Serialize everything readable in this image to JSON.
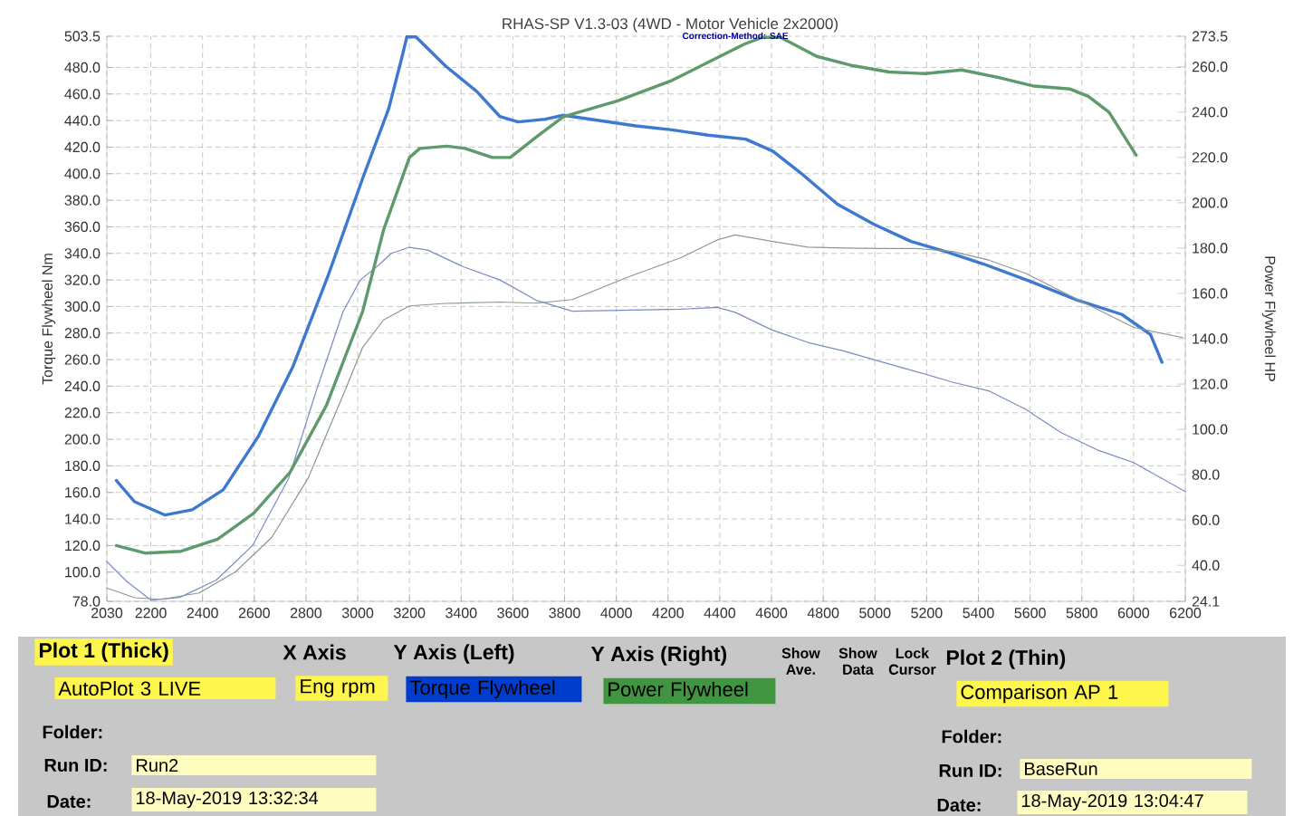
{
  "chart_data": {
    "type": "line",
    "title": "RHAS-SP V1.3-03 (4WD - Motor Vehicle 2x2000)",
    "subtitle": "Correction-Method: SAE",
    "ylabel": "Torque Flywheel Nm",
    "y2label": "Power Flywheel HP",
    "xlim": [
      2030,
      6200
    ],
    "xticks": [
      2030,
      2200,
      2400,
      2600,
      2800,
      3000,
      3200,
      3400,
      3600,
      3800,
      4000,
      4200,
      4400,
      4600,
      4800,
      5000,
      5200,
      5400,
      5600,
      5800,
      6000,
      6200
    ],
    "ylim": [
      78,
      503.5
    ],
    "yticks": [
      {
        "value": 78,
        "label": "78.0"
      },
      {
        "value": 100,
        "label": "100.0"
      },
      {
        "value": 120,
        "label": "120.0"
      },
      {
        "value": 140,
        "label": "140.0"
      },
      {
        "value": 160,
        "label": "160.0"
      },
      {
        "value": 180,
        "label": "180.0"
      },
      {
        "value": 200,
        "label": "200.0"
      },
      {
        "value": 220,
        "label": "220.0"
      },
      {
        "value": 240,
        "label": "240.0"
      },
      {
        "value": 260,
        "label": "260.0"
      },
      {
        "value": 280,
        "label": "280.0"
      },
      {
        "value": 300,
        "label": "300.0"
      },
      {
        "value": 320,
        "label": "320.0"
      },
      {
        "value": 340,
        "label": "340.0"
      },
      {
        "value": 360,
        "label": "360.0"
      },
      {
        "value": 380,
        "label": "380.0"
      },
      {
        "value": 400,
        "label": "400.0"
      },
      {
        "value": 420,
        "label": "420.0"
      },
      {
        "value": 440,
        "label": "440.0"
      },
      {
        "value": 460,
        "label": "460.0"
      },
      {
        "value": 480,
        "label": "480.0"
      },
      503.5
    ],
    "y2lim": [
      24.1,
      273.5
    ],
    "y2ticks": [
      24.1,
      {
        "value": 40,
        "label": "40.0"
      },
      {
        "value": 60,
        "label": "60.0"
      },
      {
        "value": 80,
        "label": "80.0"
      },
      {
        "value": 100,
        "label": "100.0"
      },
      {
        "value": 120,
        "label": "120.0"
      },
      {
        "value": 140,
        "label": "140.0"
      },
      {
        "value": 160,
        "label": "160.0"
      },
      {
        "value": 180,
        "label": "180.0"
      },
      {
        "value": 200,
        "label": "200.0"
      },
      {
        "value": 220,
        "label": "220.0"
      },
      {
        "value": 240,
        "label": "240.0"
      },
      {
        "value": 260,
        "label": "260.0"
      },
      273.5
    ],
    "grid": true,
    "marker": "none",
    "line_style": "solid",
    "series": [
      {
        "color": "#3f78d0",
        "axis": "y",
        "x": [
          2067,
          2137,
          2255,
          2360,
          2480,
          2615,
          2750,
          2885,
          3020,
          3120,
          3170,
          3190,
          3225,
          3340,
          3460,
          3550,
          3620,
          3725,
          3795,
          3935,
          4075,
          4215,
          4355,
          4500,
          4605,
          4710,
          4855,
          4995,
          5140,
          5280,
          5420,
          5600,
          5780,
          5955,
          6065,
          6110
        ],
        "values": [
          169,
          153,
          143,
          147,
          162,
          202,
          255,
          323,
          397,
          449,
          487,
          503,
          503,
          481,
          462,
          443,
          439,
          441,
          444,
          440,
          436,
          433,
          429,
          426,
          417,
          401,
          377,
          362,
          349,
          341,
          332,
          319,
          305,
          294,
          279,
          258
        ]
      },
      {
        "color": "#5f9a6c",
        "axis": "y2",
        "x": [
          2067,
          2177,
          2317,
          2458,
          2598,
          2738,
          2879,
          3019,
          3100,
          3200,
          3240,
          3345,
          3415,
          3520,
          3590,
          3690,
          3795,
          4005,
          4215,
          4355,
          4495,
          4565,
          4635,
          4775,
          4915,
          5055,
          5195,
          5335,
          5475,
          5615,
          5755,
          5825,
          5905,
          6010
        ],
        "values": [
          48.7,
          45.4,
          46.2,
          51.5,
          63,
          81,
          110.6,
          152,
          188,
          220,
          224,
          225,
          224,
          220,
          220,
          229,
          238,
          245,
          254,
          262,
          270,
          273,
          273,
          264.6,
          260.5,
          257.7,
          257,
          258.6,
          255.4,
          251.5,
          250.2,
          247,
          240,
          221
        ]
      },
      {
        "color": "#7b8bc4",
        "axis": "y",
        "x": [
          2030,
          2107,
          2200,
          2312,
          2453,
          2593,
          2733,
          2838,
          2943,
          3010,
          3080,
          3130,
          3200,
          3270,
          3410,
          3550,
          3690,
          3830,
          3970,
          4110,
          4250,
          4390,
          4460,
          4600,
          4740,
          4880,
          5020,
          5160,
          5300,
          5440,
          5580,
          5720,
          5860,
          6000,
          6200
        ],
        "values": [
          108,
          93,
          79,
          81,
          94,
          120,
          170.6,
          235.5,
          296,
          320,
          331,
          340,
          344.6,
          342.5,
          329.8,
          320,
          304.7,
          296.5,
          297,
          297.5,
          298,
          299.4,
          295.6,
          282.5,
          273,
          266.5,
          258.6,
          251,
          243,
          236.5,
          222.9,
          205,
          192,
          182.5,
          160.7
        ]
      },
      {
        "color": "#8a9a90",
        "axis": "y2",
        "x": [
          2030,
          2137,
          2240,
          2387,
          2528,
          2668,
          2808,
          2949,
          3019,
          3100,
          3200,
          3340,
          3550,
          3690,
          3830,
          4040,
          4250,
          4390,
          4460,
          4600,
          4740,
          4880,
          5020,
          5160,
          5300,
          5440,
          5580,
          5720,
          5860,
          6000,
          6190
        ],
        "values": [
          30,
          25.7,
          25,
          27.8,
          37.2,
          52.4,
          78.4,
          116.6,
          136.2,
          148.3,
          154.5,
          155.6,
          156.2,
          155.7,
          157.3,
          167,
          175.8,
          183.6,
          185.8,
          183,
          180.4,
          180,
          179.8,
          179.8,
          178.5,
          174.7,
          169,
          161,
          153,
          145,
          140.5
        ]
      }
    ],
    "annotations": [
      "Plot 1 (Thick)",
      "X Axis",
      "Y Axis (Left)",
      "Y Axis (Right)",
      "Show Ave.",
      "Show Data",
      "Lock Cursor",
      "Plot 2 (Thin)",
      "AutoPlot 3 LIVE",
      "Eng rpm",
      "Torque Flywheel",
      "Power Flywheel",
      "Comparison AP 1",
      "Folder:",
      "Run ID:",
      "Run2",
      "Date:",
      "18-May-2019 13:32:34",
      "Folder:",
      "Run ID:",
      "BaseRun",
      "Date:",
      "18-May-2019 13:04:47"
    ]
  }
}
